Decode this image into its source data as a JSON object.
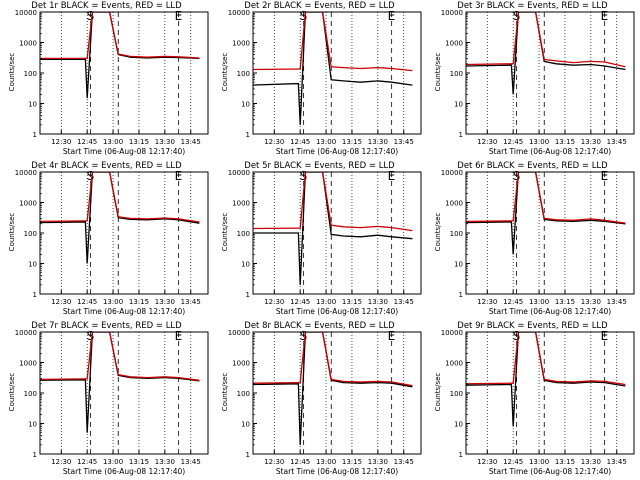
{
  "chart_data": [
    {
      "type": "line",
      "title": "Det 1r BLACK = Events, RED = LLD",
      "xlabel": "Start Time (06-Aug-08 12:17:40)",
      "ylabel": "Counts/sec",
      "xticks": [
        "12:30",
        "12:45",
        "13:00",
        "13:15",
        "13:30",
        "13:45"
      ],
      "yticks": [
        "1",
        "10",
        "100",
        "1000",
        "10000"
      ],
      "ylim": [
        1,
        10000
      ],
      "yscale": "log",
      "markers": [
        {
          "label": "S",
          "time": "12:47"
        },
        {
          "label": "E",
          "time": "13:38"
        }
      ],
      "series": [
        {
          "name": "Events",
          "color": "#000000",
          "x": [
            "12:17",
            "12:44",
            "12:45",
            "12:48",
            "12:58",
            "13:03",
            "13:10",
            "13:20",
            "13:30",
            "13:38",
            "13:50"
          ],
          "y": [
            280,
            280,
            15,
            10000,
            10000,
            400,
            330,
            310,
            330,
            320,
            300
          ]
        },
        {
          "name": "LLD",
          "color": "#cc0000",
          "x": [
            "12:17",
            "12:44",
            "12:45",
            "12:48",
            "12:58",
            "13:03",
            "13:10",
            "13:20",
            "13:30",
            "13:38",
            "13:50"
          ],
          "y": [
            300,
            300,
            300,
            10000,
            10000,
            420,
            350,
            330,
            350,
            340,
            310
          ]
        }
      ]
    },
    {
      "type": "line",
      "title": "Det 2r BLACK = Events, RED = LLD",
      "xlabel": "Start Time (06-Aug-08 12:17:40)",
      "ylabel": "Counts/sec",
      "xticks": [
        "12:30",
        "12:45",
        "13:00",
        "13:15",
        "13:30",
        "13:45"
      ],
      "yticks": [
        "1",
        "10",
        "100",
        "1000",
        "10000"
      ],
      "ylim": [
        1,
        10000
      ],
      "yscale": "log",
      "markers": [
        {
          "label": "S",
          "time": "12:47"
        },
        {
          "label": "E",
          "time": "13:38"
        }
      ],
      "series": [
        {
          "name": "Events",
          "color": "#000000",
          "x": [
            "12:17",
            "12:44",
            "12:45",
            "12:48",
            "12:58",
            "13:03",
            "13:10",
            "13:20",
            "13:30",
            "13:38",
            "13:50"
          ],
          "y": [
            40,
            45,
            2,
            10000,
            10000,
            60,
            55,
            50,
            55,
            50,
            40
          ]
        },
        {
          "name": "LLD",
          "color": "#cc0000",
          "x": [
            "12:17",
            "12:44",
            "12:45",
            "12:48",
            "12:58",
            "13:03",
            "13:10",
            "13:20",
            "13:30",
            "13:38",
            "13:50"
          ],
          "y": [
            130,
            135,
            135,
            10000,
            10000,
            160,
            150,
            140,
            150,
            140,
            120
          ]
        }
      ]
    },
    {
      "type": "line",
      "title": "Det 3r BLACK = Events, RED = LLD",
      "xlabel": "Start Time (06-Aug-08 12:17:40)",
      "ylabel": "Counts/sec",
      "xticks": [
        "12:30",
        "12:45",
        "13:00",
        "13:15",
        "13:30",
        "13:45"
      ],
      "yticks": [
        "1",
        "10",
        "100",
        "1000",
        "10000"
      ],
      "ylim": [
        1,
        10000
      ],
      "yscale": "log",
      "markers": [
        {
          "label": "S",
          "time": "12:47"
        },
        {
          "label": "E",
          "time": "13:38"
        }
      ],
      "series": [
        {
          "name": "Events",
          "color": "#000000",
          "x": [
            "12:17",
            "12:44",
            "12:45",
            "12:48",
            "12:58",
            "13:03",
            "13:10",
            "13:20",
            "13:30",
            "13:38",
            "13:50"
          ],
          "y": [
            170,
            180,
            20,
            10000,
            10000,
            240,
            200,
            180,
            190,
            170,
            130
          ]
        },
        {
          "name": "LLD",
          "color": "#cc0000",
          "x": [
            "12:17",
            "12:44",
            "12:45",
            "12:48",
            "12:58",
            "13:03",
            "13:10",
            "13:20",
            "13:30",
            "13:38",
            "13:50"
          ],
          "y": [
            190,
            200,
            200,
            10000,
            10000,
            280,
            250,
            220,
            240,
            230,
            160
          ]
        }
      ]
    },
    {
      "type": "line",
      "title": "Det 4r BLACK = Events, RED = LLD",
      "xlabel": "Start Time (06-Aug-08 12:17:40)",
      "ylabel": "Counts/sec",
      "xticks": [
        "12:30",
        "12:45",
        "13:00",
        "13:15",
        "13:30",
        "13:45"
      ],
      "yticks": [
        "1",
        "10",
        "100",
        "1000",
        "10000"
      ],
      "ylim": [
        1,
        10000
      ],
      "yscale": "log",
      "markers": [
        {
          "label": "S",
          "time": "12:47"
        },
        {
          "label": "E",
          "time": "13:38"
        }
      ],
      "series": [
        {
          "name": "Events",
          "color": "#000000",
          "x": [
            "12:17",
            "12:44",
            "12:45",
            "12:48",
            "12:58",
            "13:03",
            "13:10",
            "13:20",
            "13:30",
            "13:38",
            "13:50"
          ],
          "y": [
            220,
            230,
            10,
            10000,
            10000,
            320,
            280,
            270,
            290,
            270,
            210
          ]
        },
        {
          "name": "LLD",
          "color": "#cc0000",
          "x": [
            "12:17",
            "12:44",
            "12:45",
            "12:48",
            "12:58",
            "13:03",
            "13:10",
            "13:20",
            "13:30",
            "13:38",
            "13:50"
          ],
          "y": [
            240,
            250,
            250,
            10000,
            10000,
            340,
            300,
            290,
            310,
            290,
            230
          ]
        }
      ]
    },
    {
      "type": "line",
      "title": "Det 5r BLACK = Events, RED = LLD",
      "xlabel": "Start Time (06-Aug-08 12:17:40)",
      "ylabel": "Counts/sec",
      "xticks": [
        "12:30",
        "12:45",
        "13:00",
        "13:15",
        "13:30",
        "13:45"
      ],
      "yticks": [
        "1",
        "10",
        "100",
        "1000",
        "10000"
      ],
      "ylim": [
        1,
        10000
      ],
      "yscale": "log",
      "markers": [
        {
          "label": "S",
          "time": "12:47"
        },
        {
          "label": "E",
          "time": "13:38"
        }
      ],
      "series": [
        {
          "name": "Events",
          "color": "#000000",
          "x": [
            "12:17",
            "12:44",
            "12:45",
            "12:48",
            "12:58",
            "13:03",
            "13:10",
            "13:20",
            "13:30",
            "13:38",
            "13:50"
          ],
          "y": [
            100,
            100,
            2,
            10000,
            10000,
            90,
            80,
            75,
            85,
            75,
            65
          ]
        },
        {
          "name": "LLD",
          "color": "#cc0000",
          "x": [
            "12:17",
            "12:44",
            "12:45",
            "12:48",
            "12:58",
            "13:03",
            "13:10",
            "13:20",
            "13:30",
            "13:38",
            "13:50"
          ],
          "y": [
            140,
            145,
            145,
            10000,
            10000,
            180,
            160,
            150,
            165,
            150,
            120
          ]
        }
      ]
    },
    {
      "type": "line",
      "title": "Det 6r BLACK = Events, RED = LLD",
      "xlabel": "Start Time (06-Aug-08 12:17:40)",
      "ylabel": "Counts/sec",
      "xticks": [
        "12:30",
        "12:45",
        "13:00",
        "13:15",
        "13:30",
        "13:45"
      ],
      "yticks": [
        "1",
        "10",
        "100",
        "1000",
        "10000"
      ],
      "ylim": [
        1,
        10000
      ],
      "yscale": "log",
      "markers": [
        {
          "label": "S",
          "time": "12:47"
        },
        {
          "label": "E",
          "time": "13:38"
        }
      ],
      "series": [
        {
          "name": "Events",
          "color": "#000000",
          "x": [
            "12:17",
            "12:44",
            "12:45",
            "12:48",
            "12:58",
            "13:03",
            "13:10",
            "13:20",
            "13:30",
            "13:38",
            "13:50"
          ],
          "y": [
            220,
            230,
            20,
            10000,
            10000,
            280,
            250,
            240,
            260,
            240,
            200
          ]
        },
        {
          "name": "LLD",
          "color": "#cc0000",
          "x": [
            "12:17",
            "12:44",
            "12:45",
            "12:48",
            "12:58",
            "13:03",
            "13:10",
            "13:20",
            "13:30",
            "13:38",
            "13:50"
          ],
          "y": [
            240,
            250,
            250,
            10000,
            10000,
            300,
            270,
            260,
            290,
            260,
            210
          ]
        }
      ]
    },
    {
      "type": "line",
      "title": "Det 7r BLACK = Events, RED = LLD",
      "xlabel": "Start Time (06-Aug-08 12:17:40)",
      "ylabel": "Counts/sec",
      "xticks": [
        "12:30",
        "12:45",
        "13:00",
        "13:15",
        "13:30",
        "13:45"
      ],
      "yticks": [
        "1",
        "10",
        "100",
        "1000",
        "10000"
      ],
      "ylim": [
        1,
        10000
      ],
      "yscale": "log",
      "markers": [
        {
          "label": "S",
          "time": "12:47"
        },
        {
          "label": "E",
          "time": "13:38"
        }
      ],
      "series": [
        {
          "name": "Events",
          "color": "#000000",
          "x": [
            "12:17",
            "12:44",
            "12:45",
            "12:48",
            "12:58",
            "13:03",
            "13:10",
            "13:20",
            "13:30",
            "13:38",
            "13:50"
          ],
          "y": [
            260,
            270,
            5,
            10000,
            10000,
            380,
            320,
            300,
            320,
            300,
            250
          ]
        },
        {
          "name": "LLD",
          "color": "#cc0000",
          "x": [
            "12:17",
            "12:44",
            "12:45",
            "12:48",
            "12:58",
            "13:03",
            "13:10",
            "13:20",
            "13:30",
            "13:38",
            "13:50"
          ],
          "y": [
            280,
            290,
            290,
            10000,
            10000,
            400,
            340,
            320,
            340,
            320,
            260
          ]
        }
      ]
    },
    {
      "type": "line",
      "title": "Det 8r BLACK = Events, RED = LLD",
      "xlabel": "Start Time (06-Aug-08 12:17:40)",
      "ylabel": "Counts/sec",
      "xticks": [
        "12:30",
        "12:45",
        "13:00",
        "13:15",
        "13:30",
        "13:45"
      ],
      "yticks": [
        "1",
        "10",
        "100",
        "1000",
        "10000"
      ],
      "ylim": [
        1,
        10000
      ],
      "yscale": "log",
      "markers": [
        {
          "label": "S",
          "time": "12:47"
        },
        {
          "label": "E",
          "time": "13:38"
        }
      ],
      "series": [
        {
          "name": "Events",
          "color": "#000000",
          "x": [
            "12:17",
            "12:44",
            "12:45",
            "12:48",
            "12:58",
            "13:03",
            "13:10",
            "13:20",
            "13:30",
            "13:38",
            "13:50"
          ],
          "y": [
            190,
            200,
            2,
            10000,
            10000,
            260,
            220,
            210,
            220,
            210,
            160
          ]
        },
        {
          "name": "LLD",
          "color": "#cc0000",
          "x": [
            "12:17",
            "12:44",
            "12:45",
            "12:48",
            "12:58",
            "13:03",
            "13:10",
            "13:20",
            "13:30",
            "13:38",
            "13:50"
          ],
          "y": [
            210,
            220,
            220,
            10000,
            10000,
            280,
            240,
            230,
            240,
            230,
            175
          ]
        }
      ]
    },
    {
      "type": "line",
      "title": "Det 9r BLACK = Events, RED = LLD",
      "xlabel": "Start Time (06-Aug-08 12:17:40)",
      "ylabel": "Counts/sec",
      "xticks": [
        "12:30",
        "12:45",
        "13:00",
        "13:15",
        "13:30",
        "13:45"
      ],
      "yticks": [
        "1",
        "10",
        "100",
        "1000",
        "10000"
      ],
      "ylim": [
        1,
        10000
      ],
      "yscale": "log",
      "markers": [
        {
          "label": "S",
          "time": "12:47"
        },
        {
          "label": "E",
          "time": "13:38"
        }
      ],
      "series": [
        {
          "name": "Events",
          "color": "#000000",
          "x": [
            "12:17",
            "12:44",
            "12:45",
            "12:48",
            "12:58",
            "13:03",
            "13:10",
            "13:20",
            "13:30",
            "13:38",
            "13:50"
          ],
          "y": [
            180,
            190,
            8,
            10000,
            10000,
            260,
            220,
            210,
            230,
            220,
            170
          ]
        },
        {
          "name": "LLD",
          "color": "#cc0000",
          "x": [
            "12:17",
            "12:44",
            "12:45",
            "12:48",
            "12:58",
            "13:03",
            "13:10",
            "13:20",
            "13:30",
            "13:38",
            "13:50"
          ],
          "y": [
            200,
            210,
            210,
            10000,
            10000,
            280,
            240,
            230,
            250,
            240,
            190
          ]
        }
      ]
    }
  ]
}
